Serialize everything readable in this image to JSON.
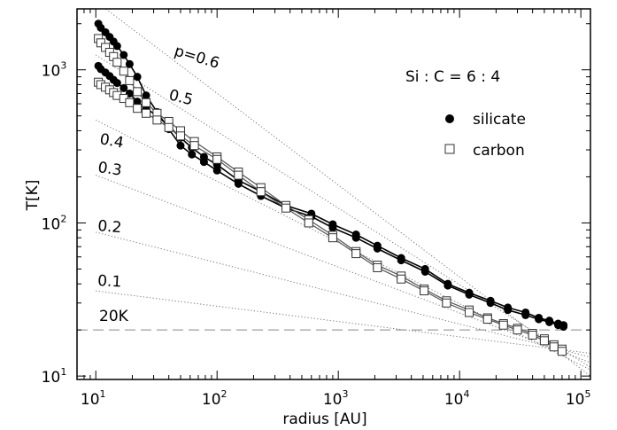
{
  "chart_data": {
    "type": "scatter",
    "title": "",
    "xlabel": "radius [AU]",
    "ylabel": "T[K]",
    "xscale": "log",
    "yscale": "log",
    "xlim": [
      7,
      120000
    ],
    "ylim": [
      9.5,
      2500
    ],
    "grid": false,
    "x_ticks": [
      {
        "label_base": "10",
        "label_exp": "1",
        "value": 10
      },
      {
        "label_base": "10",
        "label_exp": "2",
        "value": 100
      },
      {
        "label_base": "10",
        "label_exp": "3",
        "value": 1000
      },
      {
        "label_base": "10",
        "label_exp": "4",
        "value": 10000
      },
      {
        "label_base": "10",
        "label_exp": "5",
        "value": 100000
      }
    ],
    "y_ticks": [
      {
        "label_base": "10",
        "label_exp": "1",
        "value": 10
      },
      {
        "label_base": "10",
        "label_exp": "2",
        "value": 100
      },
      {
        "label_base": "10",
        "label_exp": "3",
        "value": 1000
      }
    ],
    "annotation": "Si : C = 6 : 4",
    "legend": {
      "placement": "top-right",
      "entries": [
        {
          "label": "silicate",
          "marker": "filled-circle"
        },
        {
          "label": "carbon",
          "marker": "open-square"
        }
      ]
    },
    "reference_lines": [
      {
        "label": "p=0.6",
        "p": 0.6,
        "T_at_10AU": 2800
      },
      {
        "label": "0.5",
        "p": 0.5,
        "T_at_10AU": 1250
      },
      {
        "label": "0.4",
        "p": 0.4,
        "T_at_10AU": 470
      },
      {
        "label": "0.3",
        "p": 0.3,
        "T_at_10AU": 205
      },
      {
        "label": "0.2",
        "p": 0.2,
        "T_at_10AU": 87
      },
      {
        "label": "0.1",
        "p": 0.1,
        "T_at_10AU": 36
      }
    ],
    "threshold": {
      "label": "20K",
      "value": 20
    },
    "series": [
      {
        "marker": "filled-circle",
        "color": "#000000",
        "x": [
          10.5,
          11,
          12,
          13,
          14,
          15,
          17,
          19,
          22,
          26,
          32,
          40,
          50,
          62,
          78,
          100,
          150,
          230,
          370,
          600,
          900,
          1400,
          2100,
          3300,
          5200,
          8000,
          12000,
          18000,
          25000,
          35000,
          45000,
          55000,
          65000,
          72000
        ],
        "y": [
          2000,
          1880,
          1760,
          1640,
          1530,
          1430,
          1250,
          1090,
          900,
          680,
          530,
          410,
          320,
          280,
          250,
          220,
          180,
          150,
          125,
          110,
          93,
          80,
          68,
          57,
          48,
          39,
          34,
          30,
          27,
          25,
          23.5,
          22.5,
          21.5,
          21
        ]
      },
      {
        "marker": "filled-circle",
        "color": "#000000",
        "x": [
          10.5,
          11,
          12,
          13,
          14,
          15,
          17,
          19,
          22,
          26,
          32,
          40,
          50,
          62,
          78,
          100,
          150,
          230,
          370,
          600,
          900,
          1400,
          2100,
          3300,
          5200,
          8000,
          12000,
          18000,
          25000,
          35000,
          45000,
          55000,
          65000,
          72000
        ],
        "y": [
          1060,
          1010,
          960,
          910,
          860,
          820,
          760,
          700,
          620,
          560,
          500,
          430,
          360,
          310,
          270,
          240,
          190,
          160,
          130,
          115,
          98,
          84,
          71,
          59,
          50,
          40,
          35,
          31,
          28,
          26,
          24,
          23,
          22,
          21.5
        ]
      },
      {
        "marker": "open-square",
        "color": "#555555",
        "x": [
          10.5,
          11,
          12,
          13,
          14,
          15,
          17,
          19,
          22,
          26,
          32,
          40,
          50,
          65,
          100,
          150,
          230,
          370,
          570,
          900,
          1400,
          2100,
          3300,
          5100,
          7800,
          12000,
          17000,
          23000,
          30000,
          40000,
          50000,
          60000,
          70000
        ],
        "y": [
          1600,
          1500,
          1400,
          1300,
          1220,
          1120,
          980,
          850,
          720,
          610,
          520,
          460,
          400,
          340,
          270,
          215,
          170,
          130,
          105,
          83,
          65,
          53,
          45,
          37,
          31,
          27,
          24,
          22,
          20.5,
          19,
          17.5,
          16,
          15
        ]
      },
      {
        "marker": "open-square",
        "color": "#555555",
        "x": [
          10.5,
          11,
          12,
          13,
          14,
          15,
          17,
          19,
          22,
          26,
          32,
          40,
          50,
          65,
          100,
          150,
          230,
          370,
          570,
          900,
          1400,
          2100,
          3300,
          5100,
          7800,
          12000,
          17000,
          23000,
          30000,
          40000,
          50000,
          60000,
          70000
        ],
        "y": [
          830,
          800,
          770,
          740,
          710,
          680,
          650,
          610,
          560,
          520,
          470,
          420,
          370,
          320,
          260,
          205,
          160,
          125,
          100,
          80,
          63,
          51,
          43,
          36,
          30,
          26,
          23.5,
          21.5,
          20,
          18.5,
          17,
          15.5,
          14.5
        ]
      }
    ]
  }
}
